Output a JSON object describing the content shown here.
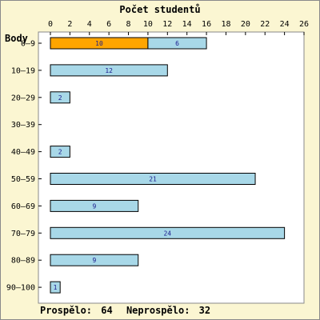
{
  "chart_data": {
    "type": "bar",
    "orientation": "horizontal",
    "stacked": true,
    "title": "Počet studentů",
    "ylabel": "Body",
    "categories": [
      "0–9",
      "10–19",
      "20–29",
      "30–39",
      "40–49",
      "50–59",
      "60–69",
      "70–79",
      "80–89",
      "90–100"
    ],
    "series": [
      {
        "color": "#ffa500",
        "values": [
          10,
          0,
          0,
          0,
          0,
          0,
          0,
          0,
          0,
          0
        ]
      },
      {
        "color": "#a8d8e8",
        "values": [
          6,
          12,
          2,
          0,
          2,
          21,
          9,
          24,
          9,
          1
        ]
      }
    ],
    "xticks": [
      0,
      2,
      4,
      6,
      8,
      10,
      12,
      14,
      16,
      18,
      20,
      22,
      24,
      26
    ],
    "xlim": [
      0,
      26
    ],
    "grid": false
  },
  "footer": {
    "passed_label": "Prospělo:",
    "passed_value": "64",
    "failed_label": "Neprospělo:",
    "failed_value": "32"
  },
  "colors": {
    "background": "#fbf6d2",
    "plot_background": "#ffffff",
    "bar_border": "#000000",
    "value_text": "#1a1a8c"
  }
}
